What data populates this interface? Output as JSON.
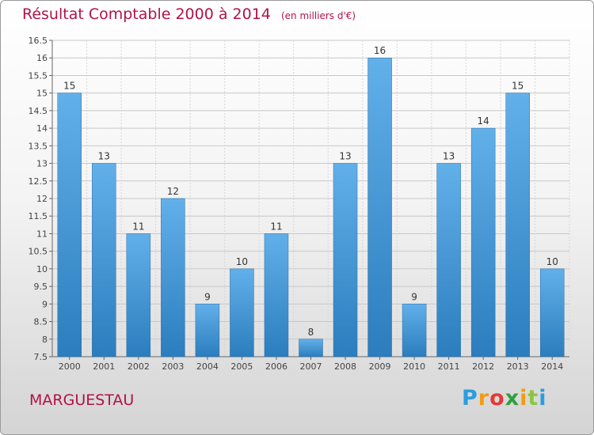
{
  "title": "Résultat Comptable 2000 à 2014",
  "unit_note": "(en milliers d'€)",
  "commune": "MARGUESTAU",
  "logo": {
    "letters": [
      "P",
      "r",
      "o",
      "x",
      "i",
      "t",
      "i"
    ],
    "colors": [
      "#2a9de0",
      "#f39c12",
      "#e53935",
      "#2e9e3e",
      "#f39c12",
      "#8cc63f",
      "#2a9de0"
    ]
  },
  "colors": {
    "accent": "#b1124a",
    "bar_top": "#62b0ea",
    "bar_bottom": "#2b7dbd"
  },
  "chart_data": {
    "type": "bar",
    "categories": [
      "2000",
      "2001",
      "2002",
      "2003",
      "2004",
      "2005",
      "2006",
      "2007",
      "2008",
      "2009",
      "2010",
      "2011",
      "2012",
      "2013",
      "2014"
    ],
    "values": [
      15,
      13,
      11,
      12,
      9,
      10,
      11,
      8,
      13,
      16,
      9,
      13,
      14,
      15,
      10
    ],
    "title": "Résultat Comptable 2000 à 2014",
    "xlabel": "",
    "ylabel": "",
    "ylim": [
      7.5,
      16.5
    ],
    "yticks": [
      "7.5",
      "8",
      "8.5",
      "9",
      "9.5",
      "10",
      "10.5",
      "11",
      "11.5",
      "12",
      "12.5",
      "13",
      "13.5",
      "14",
      "14.5",
      "15",
      "15.5",
      "16",
      "16.5"
    ],
    "grid": true,
    "legend": "none"
  }
}
